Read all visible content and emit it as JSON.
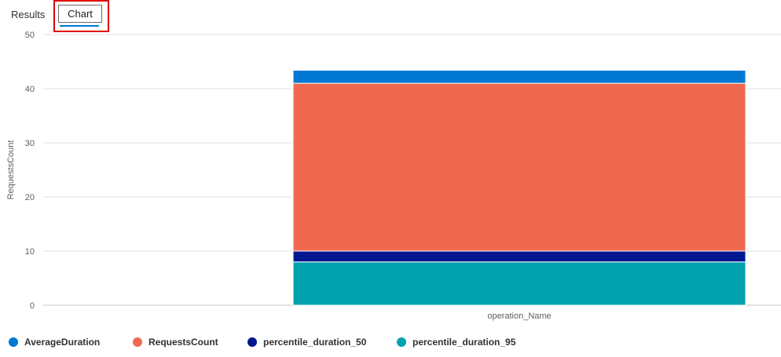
{
  "tabs": {
    "results_label": "Results",
    "chart_label": "Chart",
    "active": "Chart"
  },
  "colors": {
    "AverageDuration": "#0078d4",
    "RequestsCount": "#ef6950",
    "percentile_duration_50": "#00188f",
    "percentile_duration_95": "#00a2ad",
    "highlight": "#e00000",
    "tab_underline": "#0078d4"
  },
  "chart_data": {
    "type": "bar",
    "stacked": true,
    "categories": [
      "operation_Name"
    ],
    "xlabel": "operation_Name",
    "ylabel": "RequestsCount",
    "ylim": [
      0,
      50
    ],
    "yticks": [
      0,
      10,
      20,
      30,
      40,
      50
    ],
    "grid": true,
    "legend_position": "bottom",
    "series": [
      {
        "name": "percentile_duration_95",
        "values": [
          8
        ]
      },
      {
        "name": "percentile_duration_50",
        "values": [
          2
        ]
      },
      {
        "name": "RequestsCount",
        "values": [
          31
        ]
      },
      {
        "name": "AverageDuration",
        "values": [
          2.4
        ]
      }
    ]
  },
  "legend": [
    {
      "label": "AverageDuration",
      "color": "#0078d4"
    },
    {
      "label": "RequestsCount",
      "color": "#ef6950"
    },
    {
      "label": "percentile_duration_50",
      "color": "#00188f"
    },
    {
      "label": "percentile_duration_95",
      "color": "#00a2ad"
    }
  ]
}
